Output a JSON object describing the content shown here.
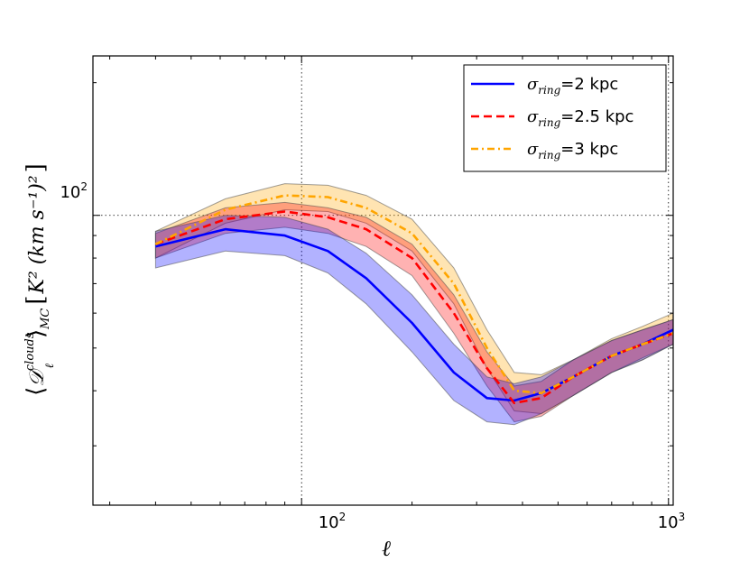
{
  "chart_data": {
    "type": "line",
    "xscale": "log",
    "yscale": "log",
    "xlim": [
      27,
      1030
    ],
    "ylim": [
      22,
      230
    ],
    "xlabel": "ℓ",
    "ylabel": {
      "symbol": "𝒟",
      "sup": "clouds",
      "sub_l": "ℓ",
      "sub_mc": "MC",
      "units": "K² (km s⁻¹)²"
    },
    "xticks": [
      {
        "value": 100,
        "base": "10",
        "exp": "2"
      },
      {
        "value": 1000,
        "base": "10",
        "exp": "3"
      }
    ],
    "yticks": [
      {
        "value": 100,
        "base": "10",
        "exp": "2"
      }
    ],
    "grid": true,
    "legend_position": "top-right",
    "series": [
      {
        "name": "σ_ring=2 kpc",
        "legend_sym": "σ",
        "legend_sub": "ring",
        "legend_value": "=2 kpc",
        "color": "#0000ff",
        "style": "solid",
        "x": [
          40,
          62,
          90,
          118,
          150,
          200,
          260,
          320,
          380,
          450,
          550,
          700,
          850,
          1030
        ],
        "y": [
          85,
          93,
          90,
          83,
          72,
          57,
          44,
          38.5,
          38,
          39.5,
          43,
          48,
          51,
          55
        ],
        "lower": [
          76,
          83,
          81,
          74,
          63,
          49,
          38,
          34,
          33.5,
          35.5,
          39,
          44,
          47,
          51
        ],
        "upper": [
          92,
          100,
          99,
          93,
          82,
          66,
          51,
          43,
          41.5,
          43,
          47,
          52,
          55,
          58
        ]
      },
      {
        "name": "σ_ring=2.5 kpc",
        "legend_sym": "σ",
        "legend_sub": "ring",
        "legend_value": "=2.5 kpc",
        "color": "#ff0000",
        "style": "dashed",
        "x": [
          40,
          62,
          90,
          118,
          150,
          200,
          260,
          320,
          380,
          450,
          550,
          700,
          850,
          1030
        ],
        "y": [
          86,
          98,
          102,
          99,
          93,
          80,
          60,
          45,
          37.5,
          38.5,
          43,
          48,
          51,
          54
        ],
        "lower": [
          80,
          91,
          94,
          91,
          85,
          73,
          54,
          41,
          34,
          35,
          39,
          44,
          47.5,
          51
        ],
        "upper": [
          91,
          104,
          107,
          104,
          99,
          86,
          66,
          49,
          41,
          42,
          47,
          52,
          55,
          58
        ]
      },
      {
        "name": "σ_ring=3 kpc",
        "legend_sym": "σ",
        "legend_sub": "ring",
        "legend_value": "=3 kpc",
        "color": "#ffa500",
        "style": "dashdot",
        "x": [
          40,
          62,
          90,
          118,
          150,
          200,
          260,
          320,
          380,
          450,
          550,
          700,
          850,
          1030
        ],
        "y": [
          86,
          103,
          111,
          110,
          104,
          91,
          70,
          50,
          40,
          39.5,
          43,
          48,
          51,
          54
        ],
        "lower": [
          80,
          96,
          103,
          102,
          96,
          83,
          63,
          45,
          36,
          35.5,
          39,
          44,
          47,
          51
        ],
        "upper": [
          92,
          109,
          118,
          117,
          111,
          98,
          76,
          55,
          44,
          43.5,
          47,
          52.5,
          56,
          60
        ]
      }
    ]
  }
}
